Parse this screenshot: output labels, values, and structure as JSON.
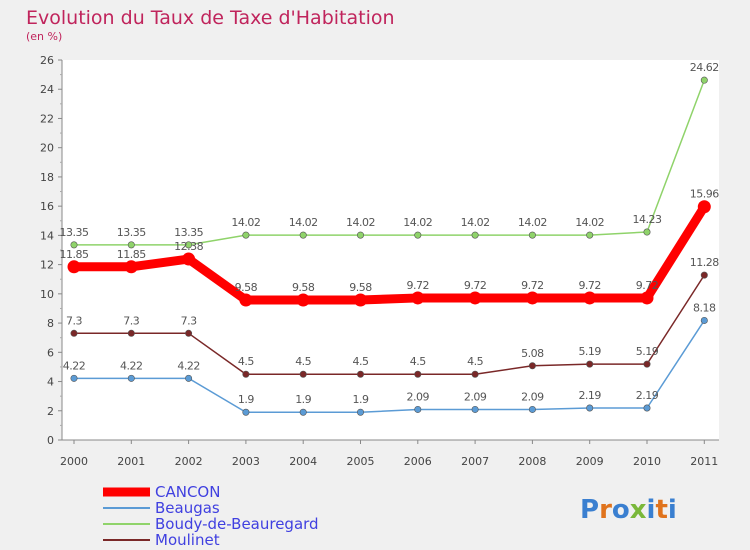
{
  "header": {
    "title": "Evolution du Taux de Taxe d'Habitation",
    "subtitle": "(en %)"
  },
  "brand": {
    "logo_text": "Proxiti"
  },
  "chart_data": {
    "type": "line",
    "title": "Evolution du Taux de Taxe d'Habitation",
    "ylabel": "(en %)",
    "xlabel": "",
    "x": [
      "2000",
      "2001",
      "2002",
      "2003",
      "2004",
      "2005",
      "2006",
      "2007",
      "2008",
      "2009",
      "2010",
      "2011"
    ],
    "ylim": [
      0,
      26
    ],
    "yticks": [
      0,
      2,
      4,
      6,
      8,
      10,
      12,
      14,
      16,
      18,
      20,
      22,
      24,
      26
    ],
    "grid": false,
    "legend_position": "bottom-left",
    "series": [
      {
        "name": "CANCON",
        "color": "#ff0000",
        "values": [
          11.85,
          11.85,
          12.38,
          9.58,
          9.58,
          9.58,
          9.72,
          9.72,
          9.72,
          9.72,
          9.72,
          15.96
        ],
        "labels": [
          "11.85",
          "11.85",
          "12.38",
          "9.58",
          "9.58",
          "9.58",
          "9.72",
          "9.72",
          "9.72",
          "9.72",
          "9.72",
          "15.96"
        ]
      },
      {
        "name": "Beaugas",
        "color": "#5b9bd5",
        "values": [
          4.22,
          4.22,
          4.22,
          1.9,
          1.9,
          1.9,
          2.09,
          2.09,
          2.09,
          2.19,
          2.19,
          8.18
        ],
        "labels": [
          "4.22",
          "4.22",
          "4.22",
          "1.9",
          "1.9",
          "1.9",
          "2.09",
          "2.09",
          "2.09",
          "2.19",
          "2.19",
          "8.18"
        ]
      },
      {
        "name": "Boudy-de-Beauregard",
        "color": "#8fd36a",
        "values": [
          13.35,
          13.35,
          13.35,
          14.02,
          14.02,
          14.02,
          14.02,
          14.02,
          14.02,
          14.02,
          14.23,
          24.62
        ],
        "labels": [
          "13.35",
          "13.35",
          "13.35",
          "14.02",
          "14.02",
          "14.02",
          "14.02",
          "14.02",
          "14.02",
          "14.02",
          "14.23",
          "24.62"
        ]
      },
      {
        "name": "Moulinet",
        "color": "#7a2828",
        "values": [
          7.3,
          7.3,
          7.3,
          4.5,
          4.5,
          4.5,
          4.5,
          4.5,
          5.08,
          5.19,
          5.19,
          11.28
        ],
        "labels": [
          "7.3",
          "7.3",
          "7.3",
          "4.5",
          "4.5",
          "4.5",
          "4.5",
          "4.5",
          "5.08",
          "5.19",
          "5.19",
          "11.28"
        ]
      }
    ]
  }
}
